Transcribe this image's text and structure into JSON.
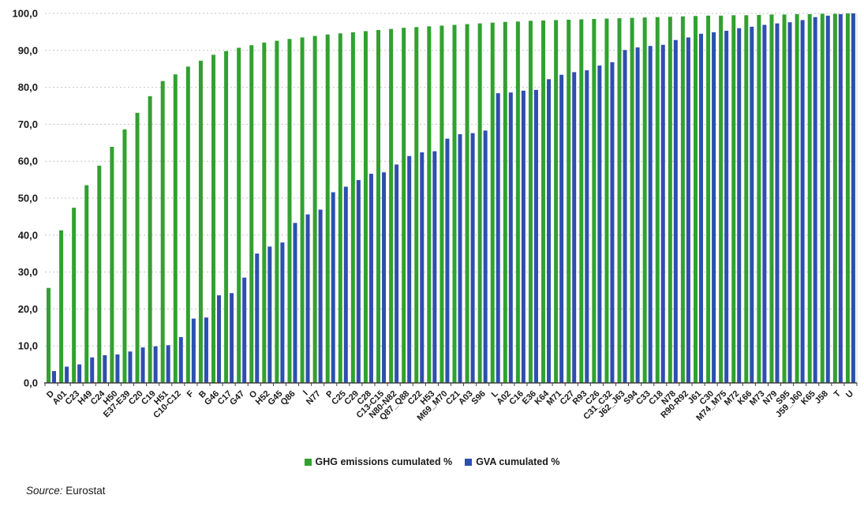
{
  "source": {
    "prefix": "Source:",
    "text": " Eurostat"
  },
  "chart_data": {
    "type": "bar",
    "title": "",
    "xlabel": "",
    "ylabel": "",
    "ylim": [
      0,
      100
    ],
    "ytick_values": [
      0,
      10,
      20,
      30,
      40,
      50,
      60,
      70,
      80,
      90,
      100
    ],
    "ytick_labels": [
      "0,0",
      "10,0",
      "20,0",
      "30,0",
      "40,0",
      "50,0",
      "60,0",
      "70,0",
      "80,0",
      "90,0",
      "100,0"
    ],
    "grid": "horizontal-dashed",
    "legend_position": "bottom",
    "categories": [
      "D",
      "A01",
      "C23",
      "H49",
      "C24",
      "H50",
      "E37-E39",
      "C20",
      "C19",
      "H51",
      "C10-C12",
      "F",
      "B",
      "G46",
      "C17",
      "G47",
      "O",
      "H52",
      "G45",
      "Q86",
      "I",
      "N77",
      "P",
      "C25",
      "C29",
      "C28",
      "C13-C15",
      "N80-N82",
      "Q87_Q88",
      "C22",
      "H53",
      "M69_M70",
      "C21",
      "A03",
      "S96",
      "L",
      "A02",
      "C16",
      "E36",
      "K64",
      "M71",
      "C27",
      "R93",
      "C26",
      "C31_C32",
      "J62_J63",
      "S94",
      "C33",
      "C18",
      "N78",
      "R90-R92",
      "J61",
      "C30",
      "M74_M75",
      "M72",
      "K66",
      "M73",
      "N79",
      "S95",
      "J59_J60",
      "K65",
      "J58",
      "T",
      "U"
    ],
    "series": [
      {
        "name": "GHG emissions cumulated %",
        "color": "#31a12f",
        "values": [
          25.7,
          41.3,
          47.4,
          53.5,
          58.8,
          63.9,
          68.6,
          73.1,
          77.6,
          81.7,
          83.5,
          85.6,
          87.2,
          88.8,
          89.8,
          90.7,
          91.4,
          92.1,
          92.6,
          93.1,
          93.5,
          93.9,
          94.3,
          94.6,
          94.9,
          95.2,
          95.5,
          95.8,
          96.1,
          96.3,
          96.5,
          96.7,
          96.9,
          97.1,
          97.3,
          97.5,
          97.7,
          97.8,
          98.0,
          98.1,
          98.2,
          98.3,
          98.4,
          98.5,
          98.6,
          98.7,
          98.8,
          98.9,
          99.0,
          99.1,
          99.2,
          99.3,
          99.4,
          99.4,
          99.5,
          99.5,
          99.6,
          99.7,
          99.7,
          99.8,
          99.8,
          99.9,
          99.9,
          100.0
        ]
      },
      {
        "name": "GVA cumulated %",
        "color": "#2e4fae",
        "values": [
          3.2,
          4.4,
          5.0,
          6.9,
          7.5,
          7.7,
          8.5,
          9.6,
          9.9,
          10.2,
          12.4,
          17.4,
          17.7,
          23.7,
          24.3,
          28.5,
          35.0,
          36.9,
          38.0,
          43.3,
          45.6,
          46.9,
          51.6,
          53.1,
          54.9,
          56.6,
          57.0,
          59.1,
          61.4,
          62.4,
          62.7,
          66.1,
          67.3,
          67.6,
          68.3,
          78.4,
          78.6,
          79.1,
          79.3,
          82.2,
          83.4,
          84.1,
          84.6,
          85.9,
          86.8,
          90.1,
          90.8,
          91.2,
          91.5,
          92.8,
          93.5,
          94.5,
          94.9,
          95.3,
          96.0,
          96.4,
          96.9,
          97.3,
          97.6,
          98.2,
          99.0,
          99.4,
          99.8,
          100.0
        ]
      }
    ]
  }
}
